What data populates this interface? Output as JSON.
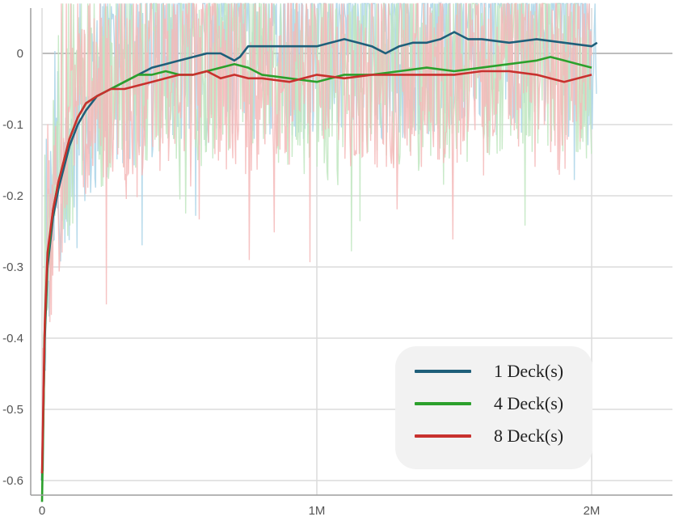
{
  "chart_data": {
    "type": "line",
    "title": "",
    "xlabel": "",
    "ylabel": "",
    "xlim": [
      0,
      2300000
    ],
    "ylim": [
      -0.625,
      0.065
    ],
    "x_ticks": [
      {
        "value": 0,
        "label": "0"
      },
      {
        "value": 1000000,
        "label": "1M"
      },
      {
        "value": 2000000,
        "label": "2M"
      }
    ],
    "y_ticks": [
      {
        "value": 0,
        "label": "0"
      },
      {
        "value": -0.1,
        "label": "-0.1"
      },
      {
        "value": -0.2,
        "label": "-0.2"
      },
      {
        "value": -0.3,
        "label": "-0.3"
      },
      {
        "value": -0.4,
        "label": "-0.4"
      },
      {
        "value": -0.5,
        "label": "-0.5"
      },
      {
        "value": -0.6,
        "label": "-0.6"
      }
    ],
    "grid": true,
    "legend_position": "bottom-right",
    "series": [
      {
        "name": "1 Deck(s)",
        "color": "#1f5f7a",
        "raw_color": "#a9d3e8",
        "x": [
          0,
          10000,
          20000,
          40000,
          60000,
          80000,
          100000,
          130000,
          160000,
          200000,
          250000,
          300000,
          350000,
          400000,
          450000,
          500000,
          550000,
          600000,
          650000,
          700000,
          720000,
          750000,
          800000,
          900000,
          1000000,
          1100000,
          1150000,
          1200000,
          1250000,
          1300000,
          1350000,
          1400000,
          1450000,
          1500000,
          1550000,
          1600000,
          1700000,
          1800000,
          1900000,
          2000000,
          2020000
        ],
        "y": [
          -0.6,
          -0.4,
          -0.3,
          -0.23,
          -0.19,
          -0.16,
          -0.13,
          -0.1,
          -0.08,
          -0.06,
          -0.05,
          -0.04,
          -0.03,
          -0.02,
          -0.015,
          -0.01,
          -0.005,
          0.0,
          0.0,
          -0.01,
          -0.005,
          0.01,
          0.01,
          0.01,
          0.01,
          0.02,
          0.015,
          0.01,
          0.0,
          0.01,
          0.015,
          0.015,
          0.02,
          0.03,
          0.02,
          0.02,
          0.015,
          0.02,
          0.015,
          0.01,
          0.015
        ]
      },
      {
        "name": "4 Deck(s)",
        "color": "#2ca02c",
        "raw_color": "#bfe6bf",
        "x": [
          0,
          10000,
          20000,
          40000,
          60000,
          80000,
          100000,
          130000,
          160000,
          200000,
          250000,
          300000,
          350000,
          400000,
          450000,
          500000,
          550000,
          600000,
          650000,
          700000,
          750000,
          800000,
          900000,
          1000000,
          1100000,
          1200000,
          1300000,
          1400000,
          1500000,
          1600000,
          1700000,
          1800000,
          1850000,
          1900000,
          1950000,
          2000000
        ],
        "y": [
          -0.63,
          -0.39,
          -0.29,
          -0.22,
          -0.18,
          -0.15,
          -0.12,
          -0.09,
          -0.07,
          -0.06,
          -0.05,
          -0.04,
          -0.03,
          -0.03,
          -0.025,
          -0.03,
          -0.03,
          -0.025,
          -0.02,
          -0.015,
          -0.02,
          -0.03,
          -0.035,
          -0.04,
          -0.03,
          -0.03,
          -0.025,
          -0.02,
          -0.025,
          -0.02,
          -0.015,
          -0.01,
          -0.005,
          -0.01,
          -0.015,
          -0.02
        ]
      },
      {
        "name": "8 Deck(s)",
        "color": "#c8312e",
        "raw_color": "#f4b8b8",
        "x": [
          0,
          10000,
          20000,
          40000,
          60000,
          80000,
          100000,
          130000,
          160000,
          200000,
          250000,
          300000,
          350000,
          400000,
          450000,
          500000,
          550000,
          600000,
          650000,
          700000,
          750000,
          800000,
          900000,
          1000000,
          1100000,
          1200000,
          1300000,
          1400000,
          1500000,
          1600000,
          1700000,
          1800000,
          1900000,
          2000000
        ],
        "y": [
          -0.59,
          -0.38,
          -0.28,
          -0.22,
          -0.18,
          -0.15,
          -0.12,
          -0.09,
          -0.07,
          -0.06,
          -0.05,
          -0.05,
          -0.045,
          -0.04,
          -0.035,
          -0.03,
          -0.03,
          -0.025,
          -0.035,
          -0.03,
          -0.035,
          -0.035,
          -0.04,
          -0.03,
          -0.035,
          -0.03,
          -0.03,
          -0.03,
          -0.03,
          -0.025,
          -0.025,
          -0.03,
          -0.04,
          -0.03
        ]
      }
    ]
  }
}
